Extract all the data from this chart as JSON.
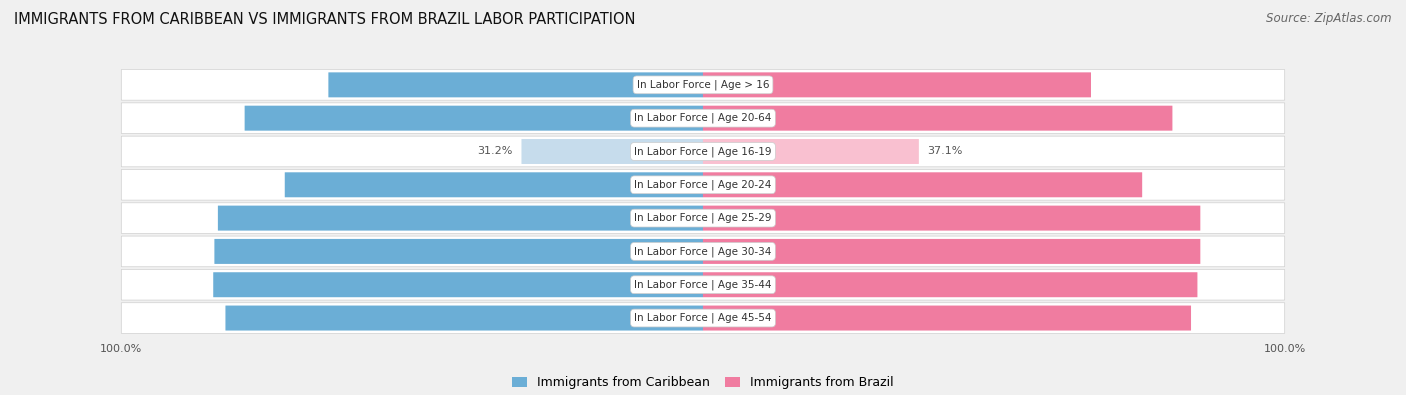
{
  "title": "IMMIGRANTS FROM CARIBBEAN VS IMMIGRANTS FROM BRAZIL LABOR PARTICIPATION",
  "source": "Source: ZipAtlas.com",
  "categories": [
    "In Labor Force | Age > 16",
    "In Labor Force | Age 20-64",
    "In Labor Force | Age 16-19",
    "In Labor Force | Age 20-24",
    "In Labor Force | Age 25-29",
    "In Labor Force | Age 30-34",
    "In Labor Force | Age 35-44",
    "In Labor Force | Age 45-54"
  ],
  "caribbean_values": [
    64.4,
    78.8,
    31.2,
    71.9,
    83.4,
    84.0,
    84.2,
    82.1
  ],
  "brazil_values": [
    66.7,
    80.7,
    37.1,
    75.5,
    85.5,
    85.5,
    85.0,
    83.9
  ],
  "caribbean_color": "#6BAED6",
  "brazil_color": "#F07CA0",
  "caribbean_light_color": "#C6DCEC",
  "brazil_light_color": "#F9C0D0",
  "background_color": "#f0f0f0",
  "row_bg_color": "#ffffff",
  "row_border_color": "#d0d0d0",
  "title_fontsize": 10.5,
  "source_fontsize": 8.5,
  "value_fontsize": 8,
  "cat_label_fontsize": 7.5,
  "legend_fontsize": 9,
  "axis_label_fontsize": 8
}
